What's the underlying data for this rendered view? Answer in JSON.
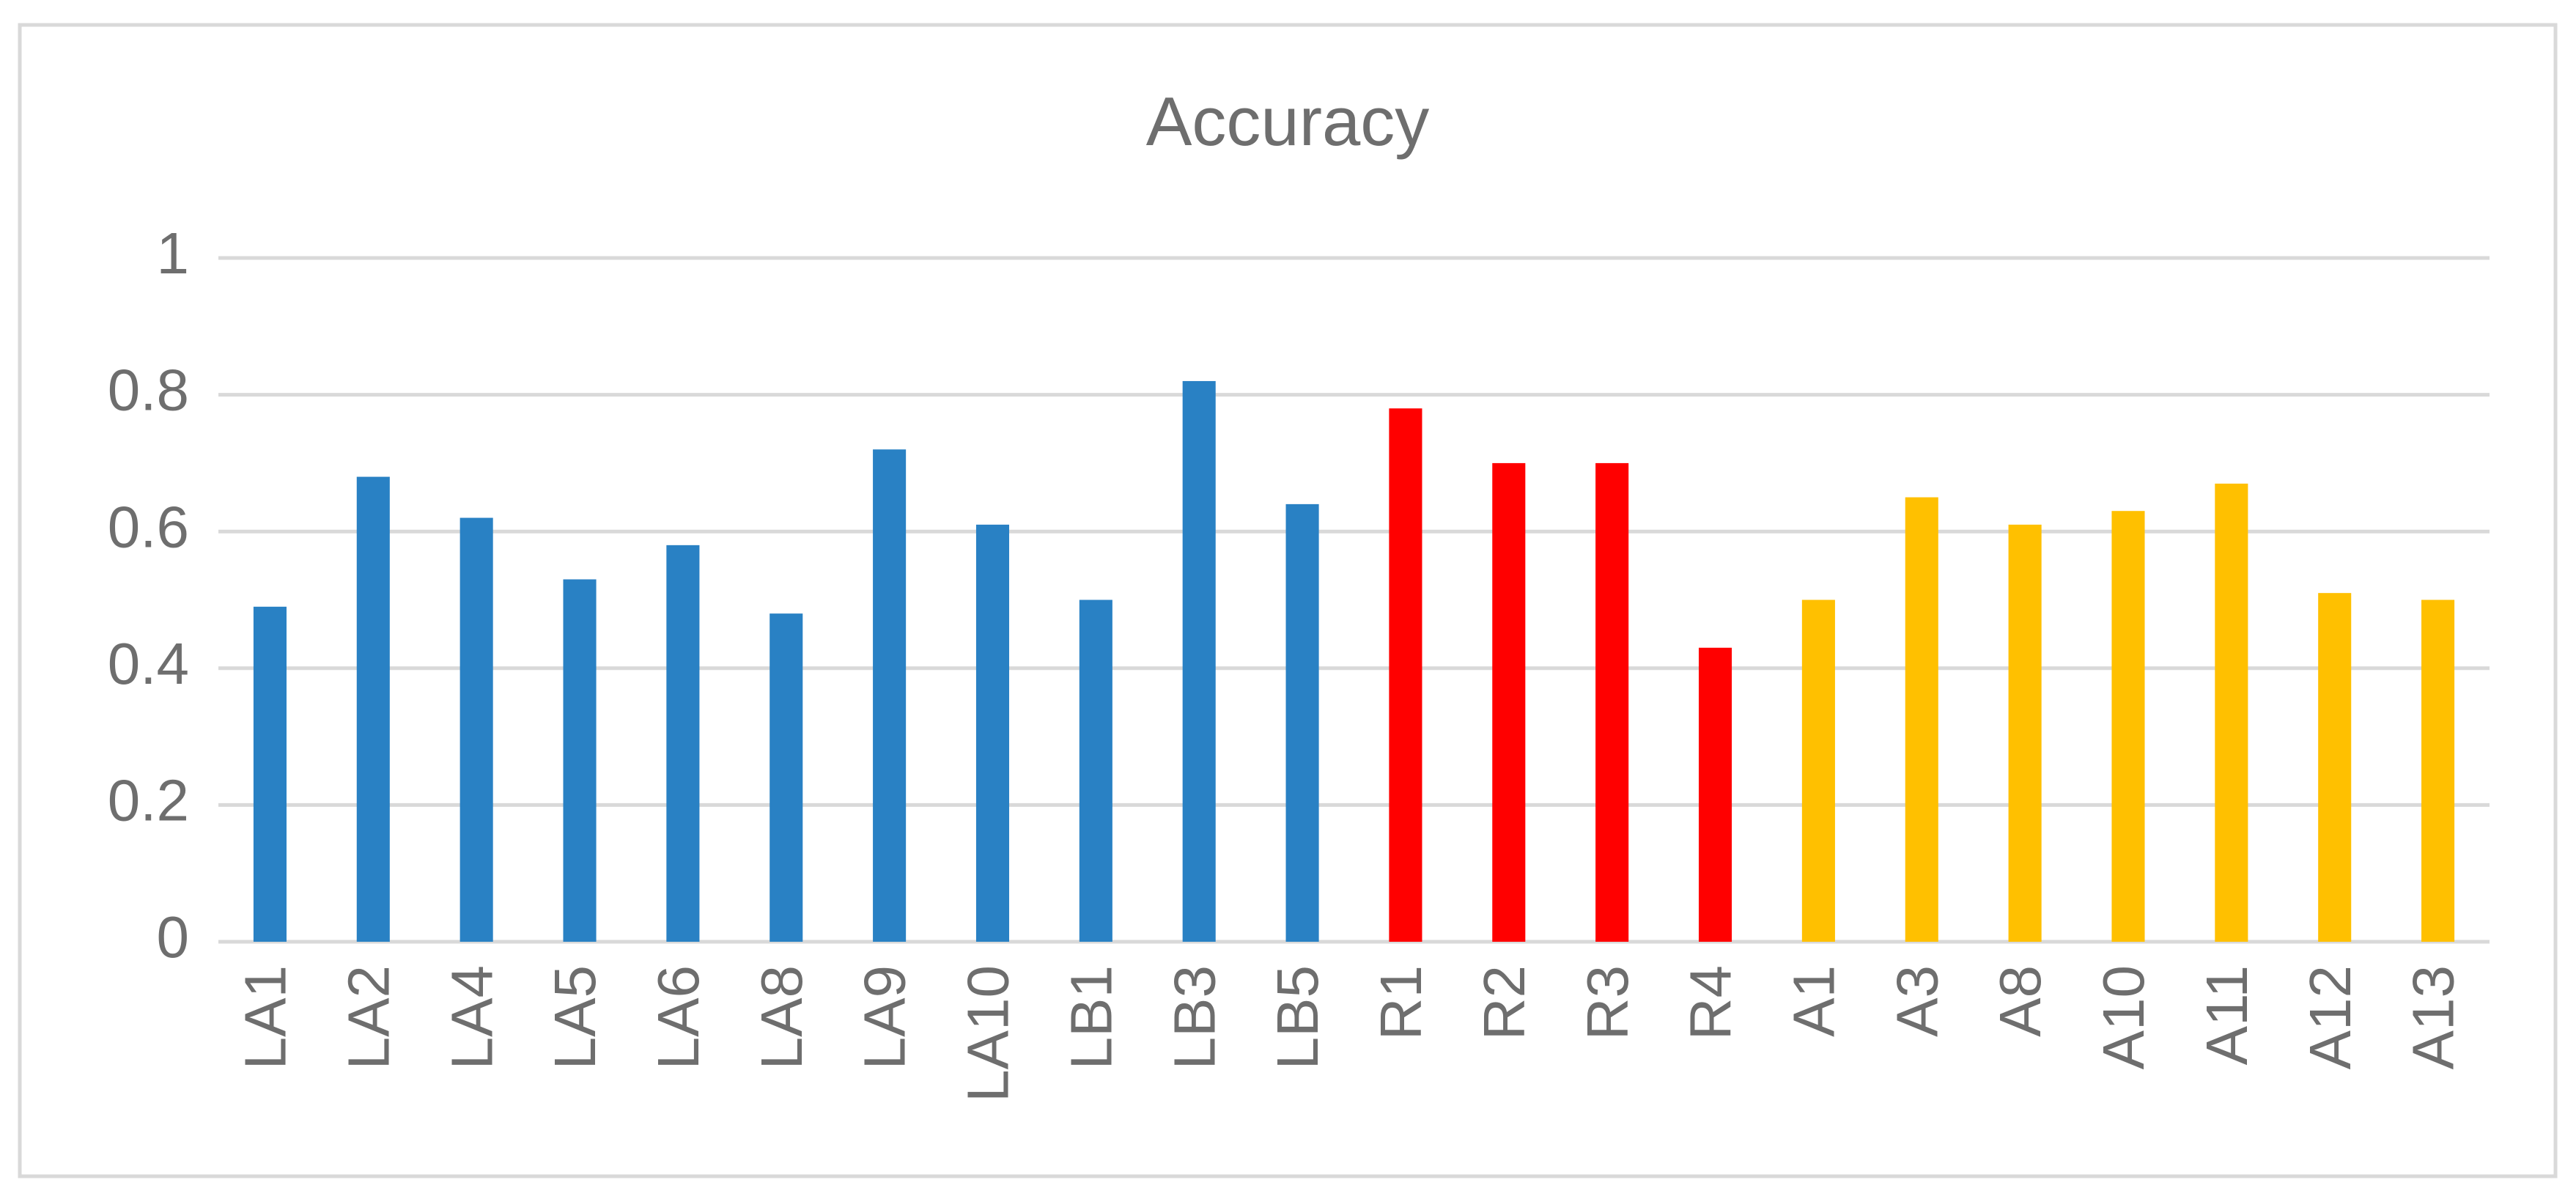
{
  "chart_data": {
    "type": "bar",
    "title": "Accuracy",
    "categories": [
      "LA1",
      "LA2",
      "LA4",
      "LA5",
      "LA6",
      "LA8",
      "LA9",
      "LA10",
      "LB1",
      "LB3",
      "LB5",
      "R1",
      "R2",
      "R3",
      "R4",
      "A1",
      "A3",
      "A8",
      "A10",
      "A11",
      "A12",
      "A13"
    ],
    "values": [
      0.49,
      0.68,
      0.62,
      0.53,
      0.58,
      0.48,
      0.72,
      0.61,
      0.5,
      0.82,
      0.64,
      0.78,
      0.7,
      0.7,
      0.43,
      0.5,
      0.65,
      0.61,
      0.63,
      0.67,
      0.51,
      0.5
    ],
    "colors": [
      "#2981c4",
      "#2981c4",
      "#2981c4",
      "#2981c4",
      "#2981c4",
      "#2981c4",
      "#2981c4",
      "#2981c4",
      "#2981c4",
      "#2981c4",
      "#2981c4",
      "#ff0000",
      "#ff0000",
      "#ff0000",
      "#ff0000",
      "#ffc000",
      "#ffc000",
      "#ffc000",
      "#ffc000",
      "#ffc000",
      "#ffc000",
      "#ffc000"
    ],
    "ylim": [
      0,
      1
    ],
    "yticks": [
      0,
      0.2,
      0.4,
      0.6,
      0.8,
      1
    ],
    "grid": true
  }
}
